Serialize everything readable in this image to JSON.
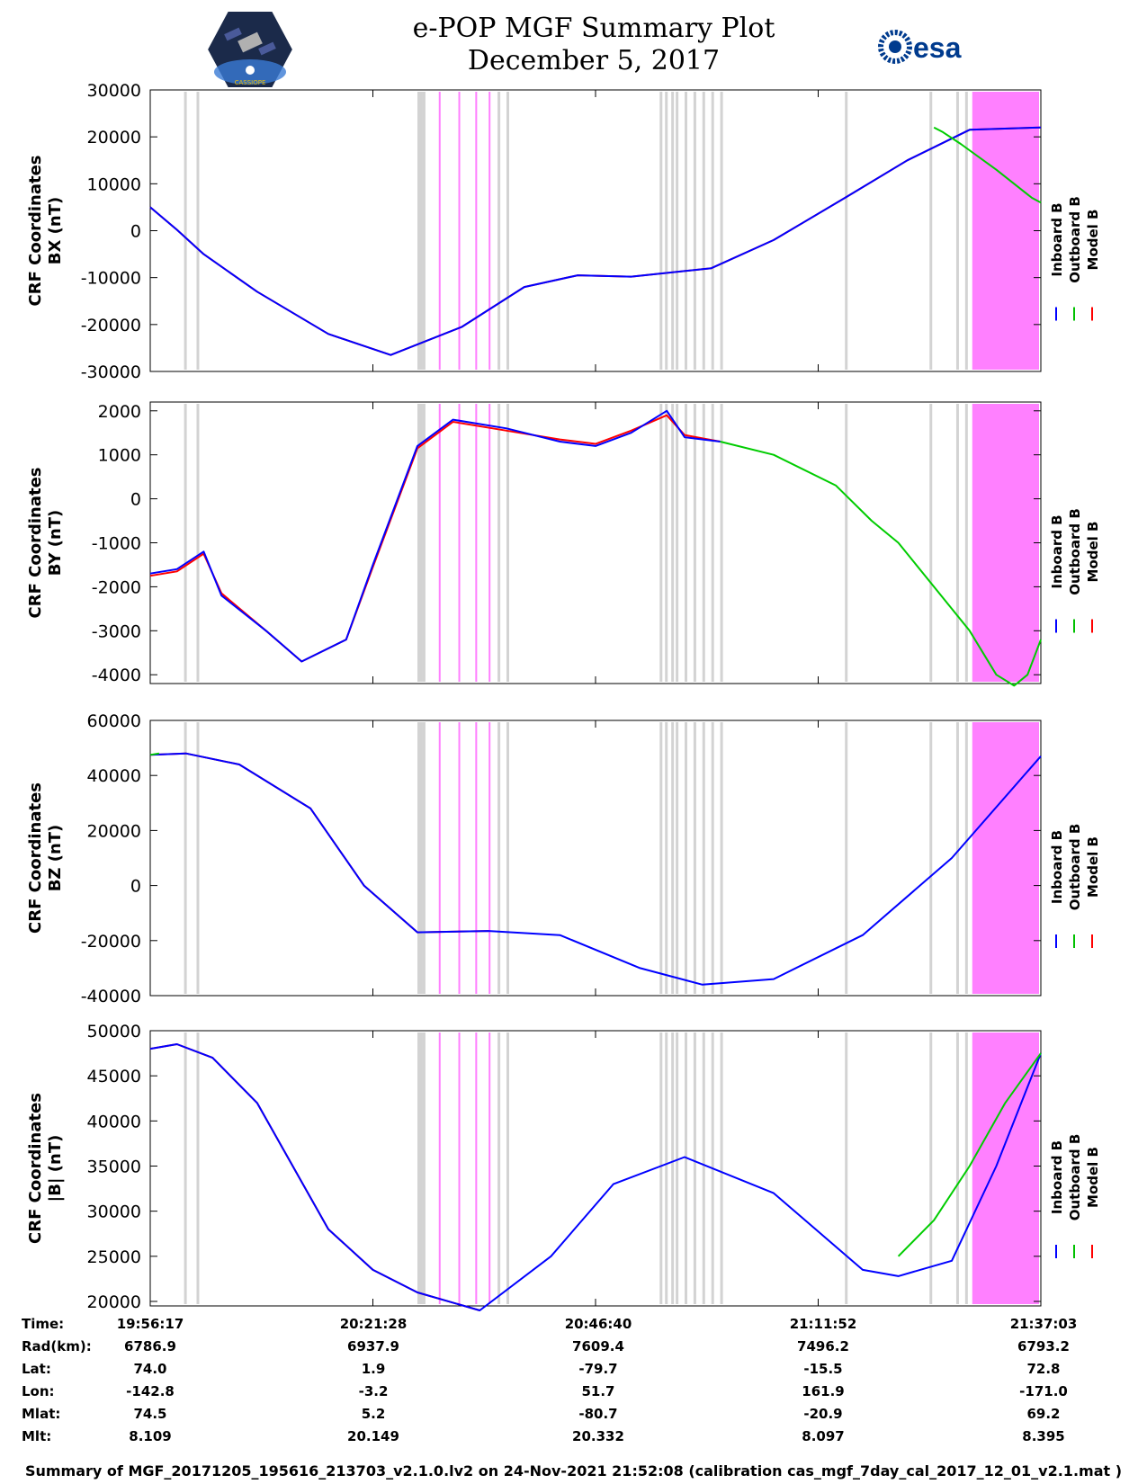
{
  "header": {
    "title": "e-POP MGF Summary Plot",
    "date": "December 5, 2017"
  },
  "logos": {
    "left": "CASSIOPE",
    "right": "esa"
  },
  "legend": {
    "labels": [
      "Inboard B",
      "Outboard B",
      "Model B"
    ],
    "colors": [
      "#0000ff",
      "#00c000",
      "#ff0000"
    ]
  },
  "colors": {
    "gap_gray": "#d3d3d3",
    "gap_pink": "#ff80ff",
    "inboard": "#0000ff",
    "outboard": "#00cc00",
    "model": "#ff0000"
  },
  "chart_data": [
    {
      "type": "line",
      "ylabel_line1": "CRF Coordinates",
      "ylabel_line2": "BX (nT)",
      "ylim": [
        -30000,
        30000
      ],
      "yticks": [
        30000,
        20000,
        10000,
        0,
        -10000,
        -20000,
        -30000
      ],
      "x_minutes": [
        0,
        3,
        6,
        12,
        20,
        27,
        35,
        42,
        48,
        54,
        63,
        70,
        78,
        85,
        92,
        100
      ],
      "series": [
        {
          "name": "Inboard B",
          "values": [
            5000,
            200,
            -5000,
            -13000,
            -22000,
            -26500,
            -20500,
            -12000,
            -9500,
            -9800,
            -8000,
            -2000,
            7000,
            15000,
            21500,
            22000
          ]
        },
        {
          "name": "Model B",
          "values": [
            5000,
            200,
            -5000,
            -13000,
            -22000,
            -26500,
            -20500,
            -12000,
            -9500,
            -9800,
            -8000,
            -2000,
            7000,
            15000,
            21500,
            22000
          ]
        },
        {
          "name": "Outboard B",
          "values": [
            22000,
            21000,
            18500,
            13000,
            7000,
            6000
          ]
        }
      ],
      "outboard_x": [
        88,
        89,
        91,
        95,
        99,
        100
      ]
    },
    {
      "type": "line",
      "ylabel_line1": "CRF Coordinates",
      "ylabel_line2": "BY (nT)",
      "ylim": [
        -4200,
        2200
      ],
      "yticks": [
        2000,
        1000,
        0,
        -1000,
        -2000,
        -3000,
        -4000
      ],
      "x_minutes": [
        0,
        3,
        6,
        8,
        13,
        17,
        22,
        25,
        30,
        34,
        40,
        46,
        50,
        54,
        58,
        60,
        64
      ],
      "series": [
        {
          "name": "Inboard B",
          "values": [
            -1700,
            -1600,
            -1200,
            -2200,
            -3000,
            -3700,
            -3200,
            -1500,
            1200,
            1800,
            1600,
            1300,
            1200,
            1500,
            2000,
            1400,
            1300
          ]
        },
        {
          "name": "Model B",
          "values": [
            -1750,
            -1650,
            -1250,
            -2150,
            -3000,
            -3700,
            -3200,
            -1550,
            1150,
            1750,
            1550,
            1350,
            1250,
            1550,
            1900,
            1450,
            1300
          ]
        },
        {
          "name": "Outboard B",
          "values": [
            1300,
            1000,
            300,
            -500,
            -1000,
            -2000,
            -3000,
            -4000,
            -4250,
            -4000,
            -3200
          ]
        }
      ],
      "outboard_x": [
        64,
        70,
        77,
        81,
        84,
        88,
        92,
        95,
        97,
        98.5,
        100
      ]
    },
    {
      "type": "line",
      "ylabel_line1": "CRF Coordinates",
      "ylabel_line2": "BZ (nT)",
      "ylim": [
        -40000,
        60000
      ],
      "yticks": [
        60000,
        40000,
        20000,
        0,
        -20000,
        -40000
      ],
      "x_minutes": [
        0,
        4,
        10,
        18,
        24,
        30,
        38,
        46,
        55,
        62,
        70,
        80,
        90,
        100
      ],
      "series": [
        {
          "name": "Inboard B",
          "values": [
            47500,
            48000,
            44000,
            28000,
            0,
            -17000,
            -16500,
            -18000,
            -30000,
            -36000,
            -34000,
            -18000,
            10000,
            47000
          ]
        },
        {
          "name": "Model B",
          "values": [
            47500,
            48000,
            44000,
            28000,
            0,
            -17000,
            -16500
          ]
        },
        {
          "name": "Outboard B",
          "values": [
            47500,
            48000
          ]
        }
      ],
      "model_x": [
        0,
        4,
        10,
        18,
        24,
        30,
        38
      ],
      "outboard_x": [
        0,
        1
      ]
    },
    {
      "type": "line",
      "ylabel_line1": "CRF Coordinates",
      "ylabel_line2": "|B| (nT)",
      "ylim": [
        19500,
        50000
      ],
      "yticks": [
        50000,
        45000,
        40000,
        35000,
        30000,
        25000,
        20000
      ],
      "x_minutes": [
        0,
        3,
        7,
        12,
        20,
        25,
        30,
        37,
        45,
        52,
        60,
        70,
        80,
        84,
        90,
        95,
        100
      ],
      "series": [
        {
          "name": "Inboard B",
          "values": [
            48000,
            48500,
            47000,
            42000,
            28000,
            23500,
            21000,
            19000,
            25000,
            33000,
            36000,
            32000,
            23500,
            22800,
            24500,
            35000,
            47500
          ]
        },
        {
          "name": "Model B",
          "values": [
            48000,
            48500,
            47000,
            42000,
            28000,
            23500,
            21000,
            19000
          ]
        },
        {
          "name": "Outboard B",
          "values": [
            25000,
            29000,
            35000,
            42000,
            47500
          ]
        }
      ],
      "model_x": [
        0,
        3,
        7,
        12,
        20,
        25,
        30,
        37
      ],
      "outboard_x": [
        84,
        88,
        92,
        96,
        100
      ]
    }
  ],
  "info": {
    "row_labels": [
      "Time:",
      "Rad(km):",
      "Lat:",
      "Lon:",
      "Mlat:",
      "Mlt:"
    ],
    "columns": [
      [
        "19:56:17",
        "6786.9",
        "74.0",
        "-142.8",
        "74.5",
        "8.109"
      ],
      [
        "20:21:28",
        "6937.9",
        "1.9",
        "-3.2",
        "5.2",
        "20.149"
      ],
      [
        "20:46:40",
        "7609.4",
        "-79.7",
        "51.7",
        "-80.7",
        "20.332"
      ],
      [
        "21:11:52",
        "7496.2",
        "-15.5",
        "161.9",
        "-20.9",
        "8.097"
      ],
      [
        "21:37:03",
        "6793.2",
        "72.8",
        "-171.0",
        "69.2",
        "8.395"
      ]
    ]
  },
  "footer": "Summary of MGF_20171205_195616_213703_v2.1.0.lv2 on 24-Nov-2021 21:52:08 (calibration cas_mgf_7day_cal_2017_12_01_v2.1.mat )"
}
